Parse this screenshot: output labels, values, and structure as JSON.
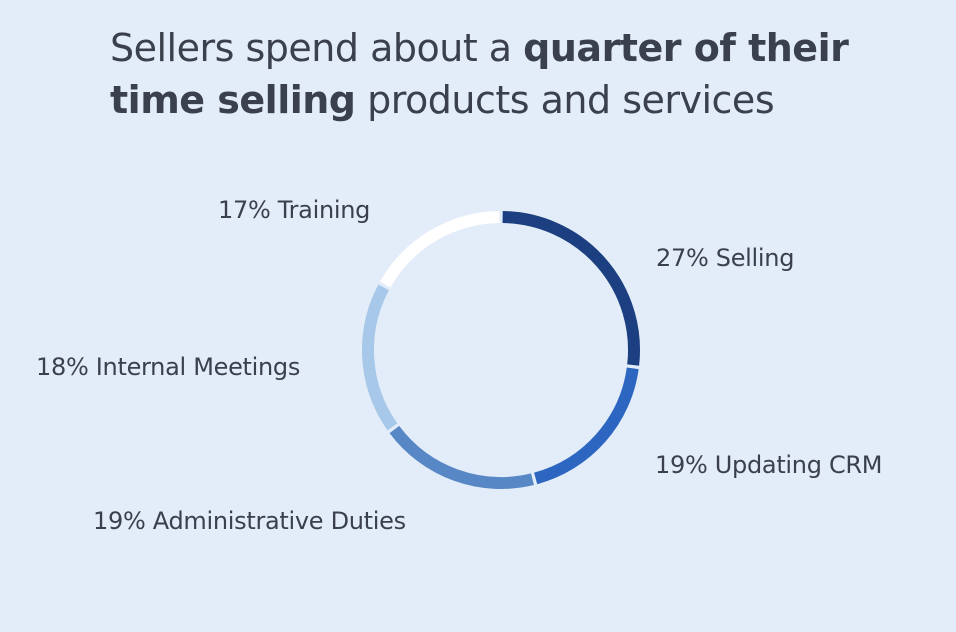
{
  "chart_data": {
    "type": "pie",
    "donut": true,
    "title_parts": [
      {
        "text": "Sellers spend about a ",
        "bold": false
      },
      {
        "text": "quarter of their time selling",
        "bold": true
      },
      {
        "text": " products and services",
        "bold": false
      }
    ],
    "slices": [
      {
        "label": "Selling",
        "value": 27,
        "display": "27% Selling",
        "color": "#1b3f80"
      },
      {
        "label": "Updating CRM",
        "value": 19,
        "display": "19% Updating CRM",
        "color": "#2d66c0"
      },
      {
        "label": "Administrative Duties",
        "value": 19,
        "display": "19% Administrative Duties",
        "color": "#5887c6"
      },
      {
        "label": "Internal Meetings",
        "value": 18,
        "display": "18% Internal Meetings",
        "color": "#a7c8e8"
      },
      {
        "label": "Training",
        "value": 17,
        "display": "17% Training",
        "color": "#ffffff"
      }
    ],
    "start_angle": "12 o'clock",
    "direction": "clockwise",
    "background": "#e3edf9"
  }
}
